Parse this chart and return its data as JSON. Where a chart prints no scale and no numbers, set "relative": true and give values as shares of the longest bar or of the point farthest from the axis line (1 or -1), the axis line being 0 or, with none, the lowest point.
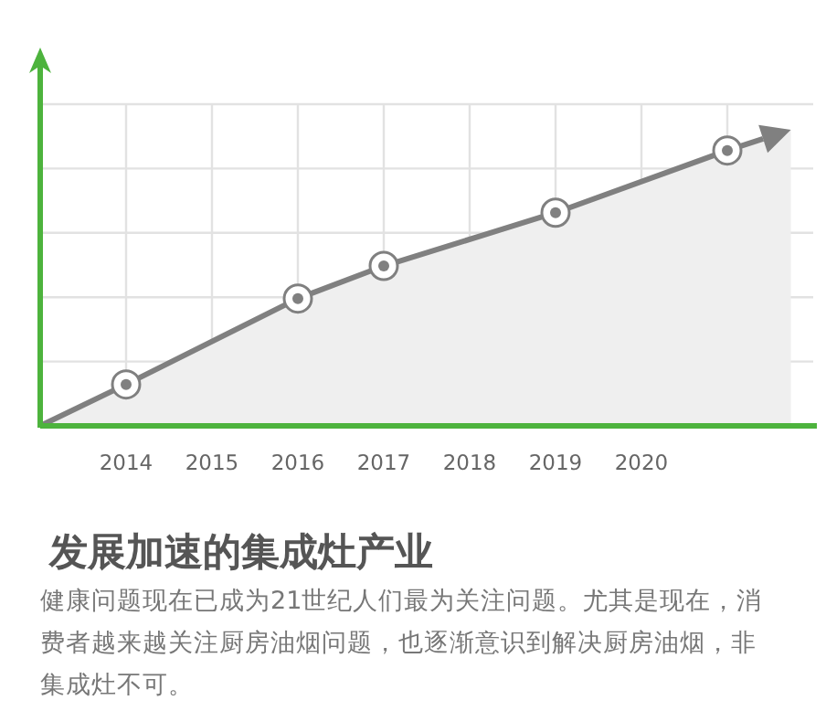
{
  "chart_data": {
    "type": "area",
    "title": "发展加速的集成灶产业",
    "annotations": [
      "健康问题现在已成为21世纪人们最为关注问题。尤其是现在，消费者越来越关注厨房油烟问题，也逐渐意识到解决厨房油烟，非集成灶不可。"
    ],
    "relative": true,
    "xlim": [
      2013,
      2022
    ],
    "xticks": [
      2014,
      2015,
      2016,
      2017,
      2018,
      2019,
      2020,
      {
        "value": 2021,
        "label": null
      }
    ],
    "grid": true,
    "series": [
      {
        "color": "#808080",
        "x": [
          2013,
          2014,
          2016,
          2017,
          2019,
          2021,
          2021.74
        ],
        "values": [
          0,
          0.14,
          0.43,
          0.54,
          0.72,
          0.93,
          1
        ]
      },
      {
        "type": "scatter",
        "color": "#808080",
        "marker": "circle",
        "x": [
          2014,
          2016,
          2017,
          2019,
          2021
        ],
        "values": [
          0.14,
          0.43,
          0.54,
          0.72,
          0.93
        ]
      }
    ]
  }
}
